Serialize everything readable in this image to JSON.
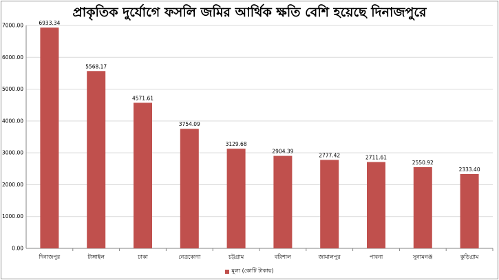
{
  "chart_data": {
    "type": "bar",
    "title": "প্রাকৃতিক দুর্যোগে ফসলি জমির আর্থিক ক্ষতি বেশি হয়েছে দিনাজপুরে",
    "categories": [
      "দিনাজপুর",
      "টাঙ্গাইল",
      "ঢাকা",
      "নেত্রকোণা",
      "চট্টগ্রাম",
      "বরিশাল",
      "জামালপুর",
      "পাবনা",
      "সুনামগঞ্জ",
      "কুড়িগ্রাম"
    ],
    "series": [
      {
        "name": "মূল্য (কোটি টাকায়)",
        "values": [
          6933.34,
          5568.17,
          4571.61,
          3754.09,
          3129.68,
          2904.39,
          2777.42,
          2711.61,
          2550.92,
          2333.4
        ],
        "labels": [
          "6933.34",
          "5568.17",
          "4571.61",
          "3754.09",
          "3129.68",
          "2904.39",
          "2777.42",
          "2711.61",
          "2550.92",
          "2333.40"
        ],
        "color": "#c0504d"
      }
    ],
    "ylim": [
      0,
      7000
    ],
    "yticks": [
      "0.00",
      "1000.00",
      "2000.00",
      "3000.00",
      "4000.00",
      "5000.00",
      "6000.00",
      "7000.00"
    ],
    "xlabel": "",
    "ylabel": "",
    "grid": true,
    "grid_color": "#d9d9d9",
    "legend": "bottom"
  }
}
